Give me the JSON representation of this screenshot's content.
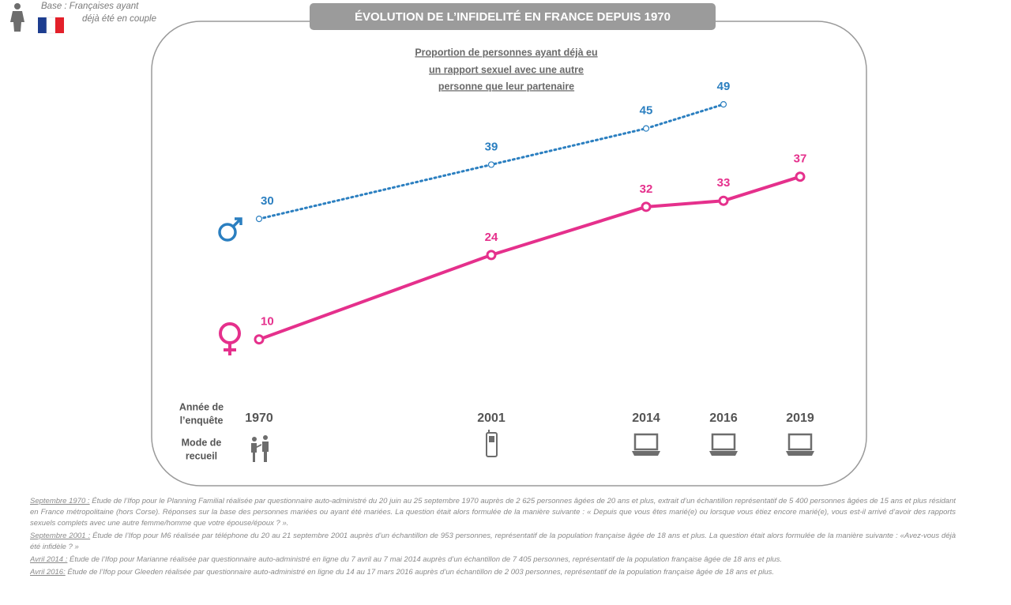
{
  "chart_data": {
    "type": "line",
    "title": "ÉVOLUTION DE L’INFIDELITÉ EN FRANCE  DEPUIS 1970",
    "subtitle": [
      "Proportion de personnes ayant déjà eu",
      "un rapport sexuel avec une autre",
      "personne que leur partenaire"
    ],
    "base_note": [
      "Base : Françaises ayant",
      "déjà été en couple"
    ],
    "categories": [
      "1970",
      "2001",
      "2014",
      "2016",
      "2019"
    ],
    "year_row_label": [
      "Année de",
      "l’enquête"
    ],
    "mode_row_label": [
      "Mode de",
      "recueil"
    ],
    "ylim": [
      0,
      50
    ],
    "series": [
      {
        "color": "#2b7fc0",
        "line_style": "dotted",
        "values": [
          30,
          39,
          45,
          49,
          null
        ]
      },
      {
        "color": "#e5308c",
        "line_style": "solid",
        "values": [
          10,
          24,
          32,
          33,
          37
        ]
      }
    ]
  },
  "footnotes": [
    {
      "label": "Septembre 1970 :",
      "text": "Étude de l’Ifop pour le Planning Familial réalisée par questionnaire auto-administré du 20 juin au 25 septembre 1970 auprès de 2 625 personnes âgées de 20 ans et plus, extrait d’un échantillon représentatif de 5 400 personnes âgées de 15 ans et plus résidant en France métropolitaine (hors Corse). Réponses sur la base des personnes mariées ou ayant été mariées. La question était alors formulée de la manière suivante : « Depuis que vous êtes marié(e) ou lorsque vous étiez encore marié(e), vous est-il arrivé d’avoir des rapports sexuels complets avec une autre femme/homme que votre épouse/époux ? »."
    },
    {
      "label": "Septembre 2001 :",
      "text": "Étude de l’Ifop pour M6 réalisée par téléphone du 20 au 21 septembre 2001 auprès d’un échantillon de 953 personnes, représentatif de la population française âgée de 18 ans et plus. La question était alors formulée de la manière suivante : «Avez-vous déjà été infidèle ? »"
    },
    {
      "label": "Avril 2014 :",
      "text": "Étude de l’Ifop pour Marianne réalisée par questionnaire auto-administré en ligne du 7 avril au 7 mai 2014 auprès d’un échantillon de 7 405 personnes, représentatif de la population française âgée de 18 ans et plus."
    },
    {
      "label": "Avril 2016:",
      "text": "Étude de l’Ifop pour Gleeden réalisée par questionnaire auto-administré en ligne du 14 au 17 mars 2016 auprès d’un échantillon de 2 003 personnes, représentatif de la population française âgée de 18 ans et plus."
    }
  ]
}
